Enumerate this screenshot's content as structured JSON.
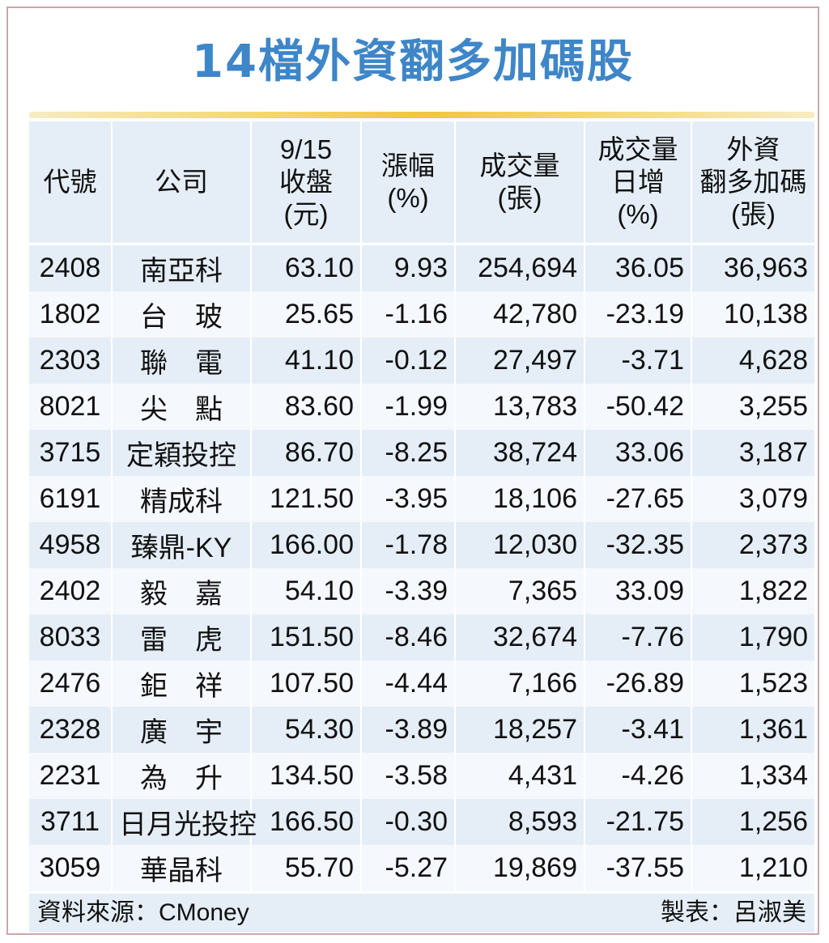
{
  "title": "14檔外資翻多加碼股",
  "table": {
    "headers": [
      [
        "代號"
      ],
      [
        "公司"
      ],
      [
        "9/15",
        "收盤",
        "(元)"
      ],
      [
        "漲幅",
        "(%)"
      ],
      [
        "成交量",
        "(張)"
      ],
      [
        "成交量",
        "日增",
        "(%)"
      ],
      [
        "外資",
        "翻多加碼",
        "(張)"
      ]
    ],
    "rows": [
      [
        "2408",
        "南亞科",
        "63.10",
        "9.93",
        "254,694",
        "36.05",
        "36,963"
      ],
      [
        "1802",
        "台　玻",
        "25.65",
        "-1.16",
        "42,780",
        "-23.19",
        "10,138"
      ],
      [
        "2303",
        "聯　電",
        "41.10",
        "-0.12",
        "27,497",
        "-3.71",
        "4,628"
      ],
      [
        "8021",
        "尖　點",
        "83.60",
        "-1.99",
        "13,783",
        "-50.42",
        "3,255"
      ],
      [
        "3715",
        "定穎投控",
        "86.70",
        "-8.25",
        "38,724",
        "33.06",
        "3,187"
      ],
      [
        "6191",
        "精成科",
        "121.50",
        "-3.95",
        "18,106",
        "-27.65",
        "3,079"
      ],
      [
        "4958",
        "臻鼎-KY",
        "166.00",
        "-1.78",
        "12,030",
        "-32.35",
        "2,373"
      ],
      [
        "2402",
        "毅　嘉",
        "54.10",
        "-3.39",
        "7,365",
        "33.09",
        "1,822"
      ],
      [
        "8033",
        "雷　虎",
        "151.50",
        "-8.46",
        "32,674",
        "-7.76",
        "1,790"
      ],
      [
        "2476",
        "鉅　祥",
        "107.50",
        "-4.44",
        "7,166",
        "-26.89",
        "1,523"
      ],
      [
        "2328",
        "廣　宇",
        "54.30",
        "-3.89",
        "18,257",
        "-3.41",
        "1,361"
      ],
      [
        "2231",
        "為　升",
        "134.50",
        "-3.58",
        "4,431",
        "-4.26",
        "1,334"
      ],
      [
        "3711",
        "日月光投控",
        "166.50",
        "-0.30",
        "8,593",
        "-21.75",
        "1,256"
      ],
      [
        "3059",
        "華晶科",
        "55.70",
        "-5.27",
        "19,869",
        "-37.55",
        "1,210"
      ]
    ]
  },
  "footer": {
    "source": "資料來源：CMoney",
    "maker": "製表：呂淑美"
  },
  "colors": {
    "title": "#3e86c8",
    "row_dark": "#e5eef7",
    "row_light": "#f5f8fc",
    "title_bar": "#f2c63c"
  }
}
